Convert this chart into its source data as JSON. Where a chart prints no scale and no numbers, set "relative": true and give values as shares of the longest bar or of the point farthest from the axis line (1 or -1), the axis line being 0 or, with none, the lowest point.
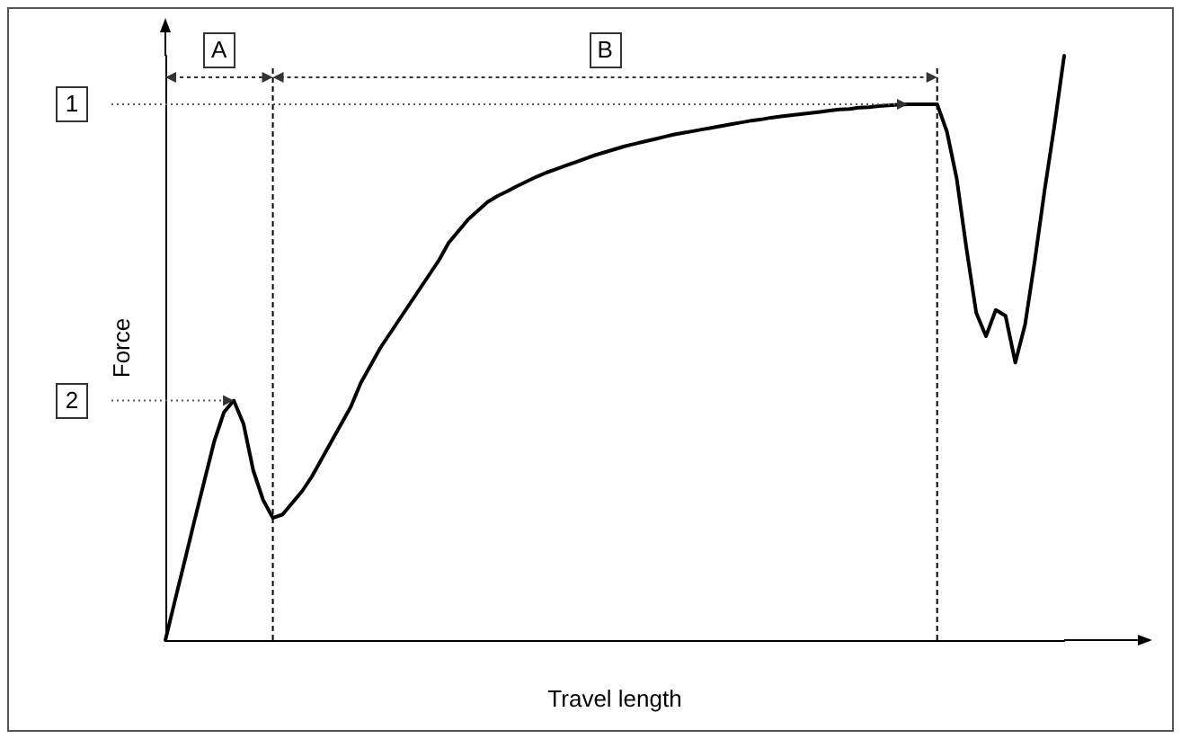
{
  "chart_data": {
    "type": "line",
    "relative": true,
    "xlabel": "Travel length",
    "ylabel": "Force",
    "grid": false,
    "marker": "none",
    "line_style": "solid",
    "categories": [
      null,
      null,
      null,
      null,
      null,
      null,
      null,
      null,
      null,
      null,
      null,
      null,
      null,
      null,
      null,
      null,
      null,
      null,
      null,
      null,
      null,
      null,
      null,
      null,
      null,
      null,
      null,
      null,
      null,
      null,
      null,
      null,
      null,
      null,
      null,
      null,
      null,
      null,
      null,
      null,
      null,
      null,
      null,
      null,
      null,
      null,
      null,
      null,
      null,
      null,
      null,
      null,
      null,
      null,
      null,
      null,
      null,
      null,
      null,
      null,
      null,
      null,
      null,
      null,
      null,
      null,
      null,
      null,
      null,
      null,
      null,
      null,
      null,
      null,
      null,
      null,
      null,
      null,
      null,
      null,
      null,
      null,
      null,
      null,
      null,
      null,
      null,
      null,
      null,
      null,
      null,
      null,
      null
    ],
    "series": [
      {
        "color": "#000000",
        "values": [
          0,
          0.069,
          0.137,
          0.206,
          0.273,
          0.34,
          0.39,
          0.41,
          0.37,
          0.29,
          0.24,
          0.209,
          0.215,
          0.235,
          0.255,
          0.28,
          0.31,
          0.34,
          0.37,
          0.4,
          0.44,
          0.47,
          0.5,
          0.525,
          0.55,
          0.575,
          0.6,
          0.625,
          0.65,
          0.68,
          0.7,
          0.72,
          0.735,
          0.75,
          0.76,
          0.768,
          0.777,
          0.785,
          0.793,
          0.8,
          0.806,
          0.812,
          0.818,
          0.824,
          0.83,
          0.835,
          0.84,
          0.845,
          0.849,
          0.853,
          0.857,
          0.861,
          0.865,
          0.868,
          0.871,
          0.874,
          0.877,
          0.88,
          0.883,
          0.886,
          0.889,
          0.891,
          0.894,
          0.896,
          0.898,
          0.9,
          0.902,
          0.904,
          0.906,
          0.908,
          0.909,
          0.911,
          0.912,
          0.914,
          0.915,
          0.916,
          0.917,
          0.917,
          0.917,
          0.917,
          0.87,
          0.79,
          0.67,
          0.56,
          0.52,
          0.565,
          0.555,
          0.475,
          0.54,
          0.65,
          0.77,
          0.88,
          1
        ]
      }
    ],
    "ref_lines": [
      {
        "axis": "y",
        "value": 0.917,
        "line_style": "dotted"
      }
    ],
    "annotations": [
      "1",
      "2",
      "A",
      "B"
    ]
  }
}
